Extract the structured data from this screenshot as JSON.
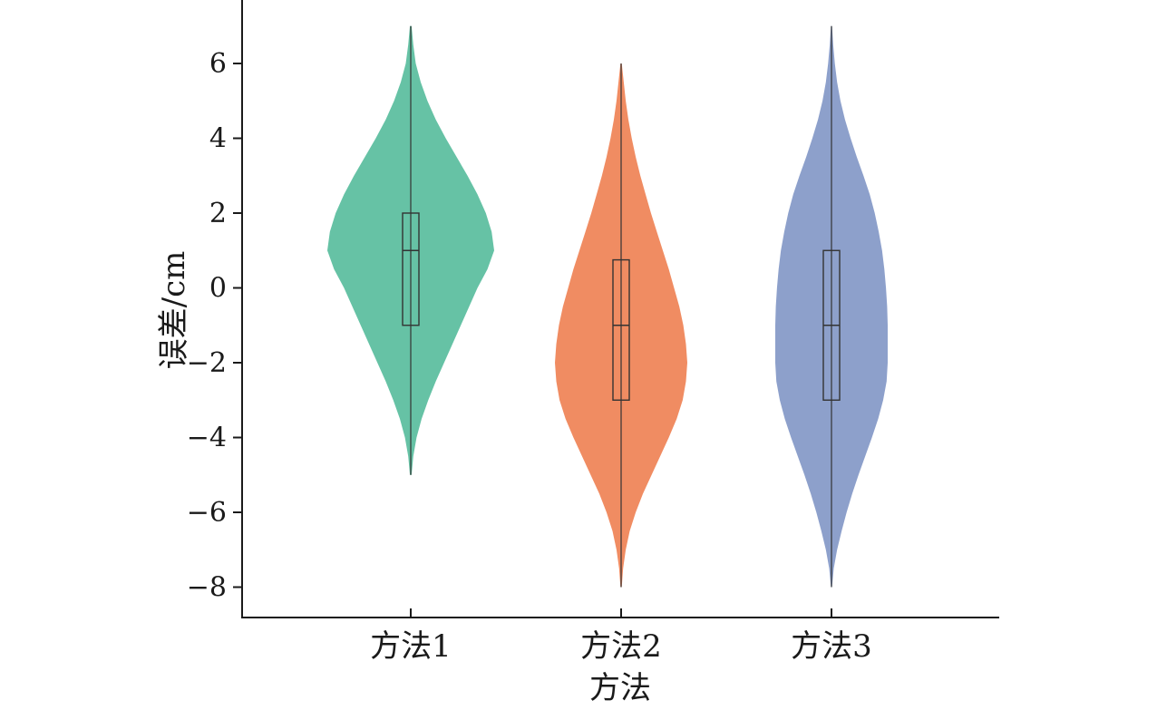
{
  "chart_data": {
    "type": "violin",
    "title": "",
    "xlabel": "方法",
    "ylabel": "误差/cm",
    "ylim": [
      -8.8,
      7.5
    ],
    "yticks": [
      -8,
      -6,
      -4,
      -2,
      0,
      2,
      4,
      6
    ],
    "ytick_labels": [
      "−8",
      "−6",
      "−4",
      "−2",
      "0",
      "2",
      "4",
      "6"
    ],
    "grid": false,
    "categories": [
      "方法1",
      "方法2",
      "方法3"
    ],
    "series": [
      {
        "color": "#66c2a5",
        "min": -5,
        "q1": -1,
        "median": 1,
        "q3": 2,
        "max": 7,
        "density": [
          [
            -5,
            0.01
          ],
          [
            -4.5,
            0.03
          ],
          [
            -4,
            0.07
          ],
          [
            -3.5,
            0.13
          ],
          [
            -3,
            0.21
          ],
          [
            -2.5,
            0.3
          ],
          [
            -2,
            0.4
          ],
          [
            -1.5,
            0.5
          ],
          [
            -1,
            0.6
          ],
          [
            -0.5,
            0.7
          ],
          [
            0,
            0.8
          ],
          [
            0.5,
            0.92
          ],
          [
            1,
            1.0
          ],
          [
            1.5,
            0.97
          ],
          [
            2,
            0.9
          ],
          [
            2.5,
            0.8
          ],
          [
            3,
            0.68
          ],
          [
            3.5,
            0.55
          ],
          [
            4,
            0.42
          ],
          [
            4.5,
            0.3
          ],
          [
            5,
            0.2
          ],
          [
            5.5,
            0.12
          ],
          [
            6,
            0.06
          ],
          [
            6.5,
            0.03
          ],
          [
            7,
            0.01
          ]
        ]
      },
      {
        "color": "#f08c62",
        "min": -8,
        "q1": -3,
        "median": -1,
        "q3": 0.75,
        "max": 6,
        "density": [
          [
            -8,
            0.01
          ],
          [
            -7.5,
            0.03
          ],
          [
            -7,
            0.07
          ],
          [
            -6.5,
            0.13
          ],
          [
            -6,
            0.22
          ],
          [
            -5.5,
            0.33
          ],
          [
            -5,
            0.46
          ],
          [
            -4.5,
            0.59
          ],
          [
            -4,
            0.72
          ],
          [
            -3.5,
            0.84
          ],
          [
            -3,
            0.93
          ],
          [
            -2.5,
            0.98
          ],
          [
            -2,
            1.0
          ],
          [
            -1.5,
            0.98
          ],
          [
            -1,
            0.94
          ],
          [
            -0.5,
            0.88
          ],
          [
            0,
            0.8
          ],
          [
            0.5,
            0.72
          ],
          [
            1,
            0.63
          ],
          [
            1.5,
            0.54
          ],
          [
            2,
            0.45
          ],
          [
            2.5,
            0.37
          ],
          [
            3,
            0.29
          ],
          [
            3.5,
            0.22
          ],
          [
            4,
            0.16
          ],
          [
            4.5,
            0.11
          ],
          [
            5,
            0.07
          ],
          [
            5.5,
            0.04
          ],
          [
            6,
            0.01
          ]
        ]
      },
      {
        "color": "#8da0cb",
        "min": -8,
        "q1": -3,
        "median": -1,
        "q3": 1,
        "max": 7,
        "density": [
          [
            -8,
            0.01
          ],
          [
            -7.5,
            0.04
          ],
          [
            -7,
            0.1
          ],
          [
            -6.5,
            0.18
          ],
          [
            -6,
            0.27
          ],
          [
            -5.5,
            0.37
          ],
          [
            -5,
            0.48
          ],
          [
            -4.5,
            0.6
          ],
          [
            -4,
            0.72
          ],
          [
            -3.5,
            0.83
          ],
          [
            -3,
            0.92
          ],
          [
            -2.5,
            0.98
          ],
          [
            -2,
            1.0
          ],
          [
            -1.5,
            1.0
          ],
          [
            -1,
            1.0
          ],
          [
            -0.5,
            0.99
          ],
          [
            0,
            0.97
          ],
          [
            0.5,
            0.94
          ],
          [
            1,
            0.9
          ],
          [
            1.5,
            0.84
          ],
          [
            2,
            0.77
          ],
          [
            2.5,
            0.68
          ],
          [
            3,
            0.57
          ],
          [
            3.5,
            0.45
          ],
          [
            4,
            0.34
          ],
          [
            4.5,
            0.24
          ],
          [
            5,
            0.16
          ],
          [
            5.5,
            0.1
          ],
          [
            6,
            0.06
          ],
          [
            6.5,
            0.03
          ],
          [
            7,
            0.01
          ]
        ]
      }
    ]
  }
}
